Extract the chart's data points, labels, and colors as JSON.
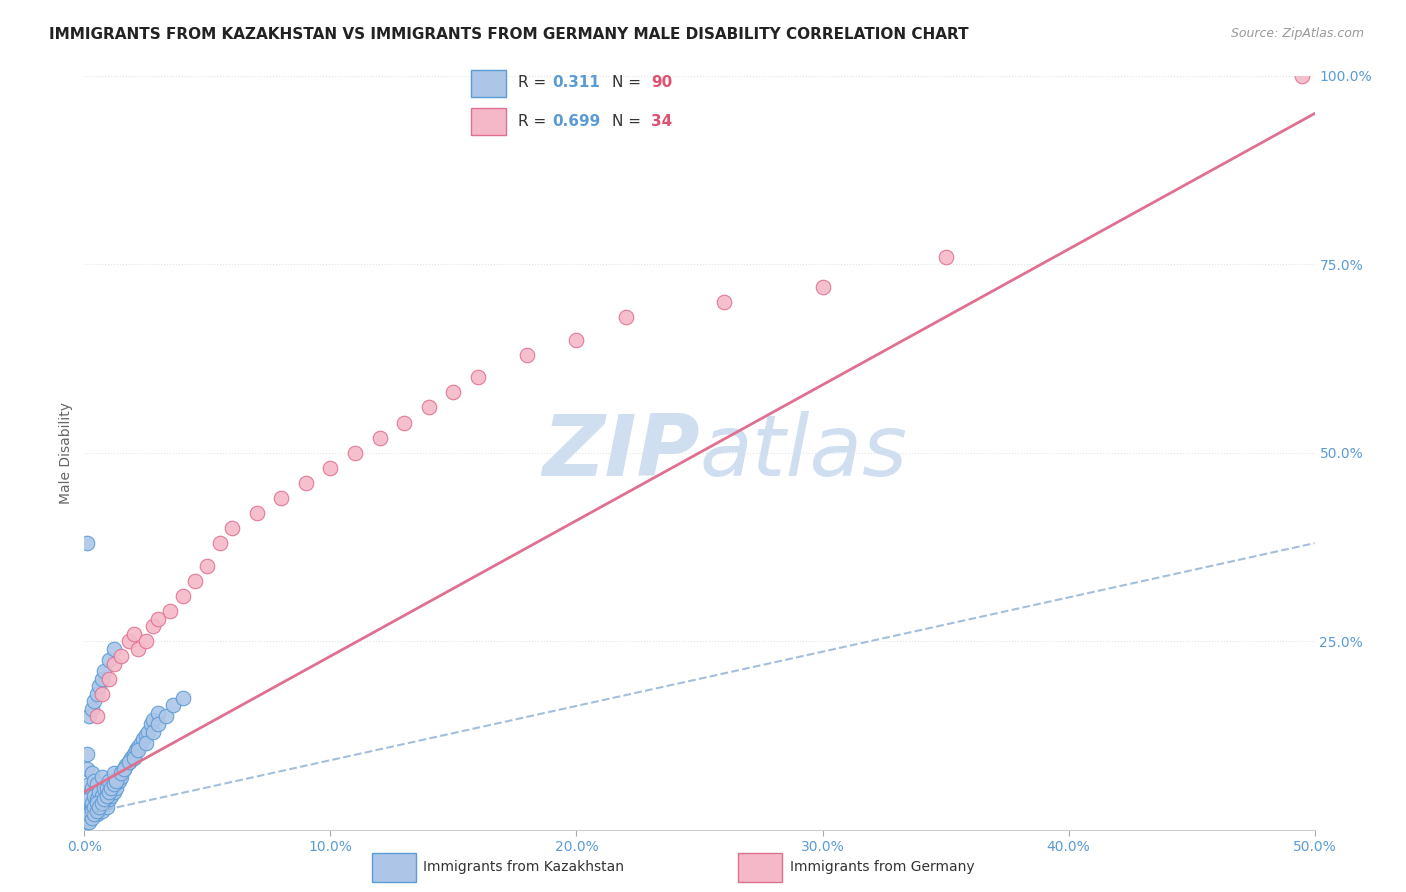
{
  "title": "IMMIGRANTS FROM KAZAKHSTAN VS IMMIGRANTS FROM GERMANY MALE DISABILITY CORRELATION CHART",
  "source": "Source: ZipAtlas.com",
  "color_kazakhstan_fill": "#adc6e8",
  "color_kazakhstan_edge": "#5b9bd5",
  "color_germany_fill": "#f4b8c8",
  "color_germany_edge": "#e07090",
  "color_trend_kaz": "#9ab8d8",
  "color_trend_ger": "#e07090",
  "watermark_color": "#d0dff0",
  "background_color": "#ffffff",
  "grid_color": "#e0e0e0",
  "tick_color": "#5b9bd5",
  "ylabel_color": "#666666",
  "title_color": "#222222",
  "source_color": "#999999",
  "xlim": [
    0.0,
    0.5
  ],
  "ylim": [
    0.0,
    1.0
  ],
  "kaz_x": [
    0.001,
    0.001,
    0.001,
    0.001,
    0.001,
    0.002,
    0.002,
    0.002,
    0.002,
    0.003,
    0.003,
    0.003,
    0.003,
    0.004,
    0.004,
    0.004,
    0.005,
    0.005,
    0.005,
    0.006,
    0.006,
    0.007,
    0.007,
    0.007,
    0.008,
    0.008,
    0.009,
    0.009,
    0.01,
    0.01,
    0.011,
    0.012,
    0.012,
    0.013,
    0.014,
    0.015,
    0.016,
    0.017,
    0.018,
    0.019,
    0.02,
    0.021,
    0.022,
    0.023,
    0.024,
    0.025,
    0.026,
    0.027,
    0.028,
    0.03,
    0.001,
    0.001,
    0.001,
    0.002,
    0.002,
    0.003,
    0.003,
    0.004,
    0.004,
    0.005,
    0.005,
    0.006,
    0.007,
    0.008,
    0.009,
    0.01,
    0.011,
    0.012,
    0.013,
    0.015,
    0.016,
    0.018,
    0.02,
    0.022,
    0.025,
    0.028,
    0.03,
    0.033,
    0.036,
    0.04,
    0.001,
    0.002,
    0.003,
    0.004,
    0.005,
    0.006,
    0.007,
    0.008,
    0.01,
    0.012
  ],
  "kaz_y": [
    0.02,
    0.03,
    0.05,
    0.08,
    0.1,
    0.015,
    0.025,
    0.04,
    0.06,
    0.02,
    0.035,
    0.055,
    0.075,
    0.025,
    0.045,
    0.065,
    0.02,
    0.04,
    0.06,
    0.03,
    0.05,
    0.025,
    0.045,
    0.07,
    0.035,
    0.055,
    0.03,
    0.055,
    0.04,
    0.065,
    0.045,
    0.05,
    0.075,
    0.055,
    0.065,
    0.07,
    0.08,
    0.085,
    0.09,
    0.095,
    0.1,
    0.105,
    0.11,
    0.115,
    0.12,
    0.125,
    0.13,
    0.14,
    0.145,
    0.155,
    0.01,
    0.015,
    0.02,
    0.01,
    0.02,
    0.015,
    0.025,
    0.02,
    0.03,
    0.025,
    0.035,
    0.03,
    0.035,
    0.04,
    0.045,
    0.05,
    0.055,
    0.06,
    0.065,
    0.075,
    0.08,
    0.09,
    0.095,
    0.105,
    0.115,
    0.13,
    0.14,
    0.15,
    0.165,
    0.175,
    0.38,
    0.15,
    0.16,
    0.17,
    0.18,
    0.19,
    0.2,
    0.21,
    0.225,
    0.24
  ],
  "ger_x": [
    0.005,
    0.007,
    0.01,
    0.012,
    0.015,
    0.018,
    0.02,
    0.022,
    0.025,
    0.028,
    0.03,
    0.035,
    0.04,
    0.045,
    0.05,
    0.055,
    0.06,
    0.07,
    0.08,
    0.09,
    0.1,
    0.11,
    0.12,
    0.13,
    0.14,
    0.15,
    0.16,
    0.18,
    0.2,
    0.22,
    0.26,
    0.3,
    0.35,
    0.495
  ],
  "ger_y": [
    0.15,
    0.18,
    0.2,
    0.22,
    0.23,
    0.25,
    0.26,
    0.24,
    0.25,
    0.27,
    0.28,
    0.29,
    0.31,
    0.33,
    0.35,
    0.38,
    0.4,
    0.42,
    0.44,
    0.46,
    0.48,
    0.5,
    0.52,
    0.54,
    0.56,
    0.58,
    0.6,
    0.63,
    0.65,
    0.68,
    0.7,
    0.72,
    0.76,
    1.0
  ],
  "kaz_trend_x": [
    0.0,
    0.5
  ],
  "kaz_trend_y": [
    0.02,
    0.38
  ],
  "ger_trend_x": [
    0.0,
    0.5
  ],
  "ger_trend_y": [
    0.05,
    0.95
  ]
}
